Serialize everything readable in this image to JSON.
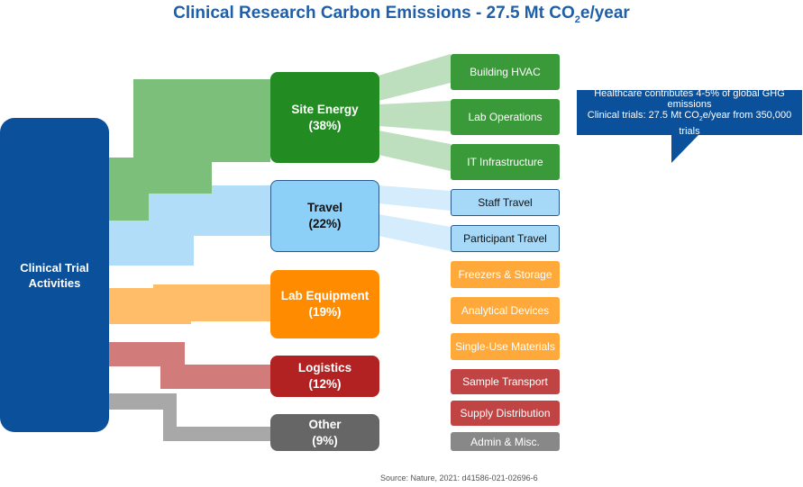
{
  "title": {
    "prefix": "Clinical Research Carbon Emissions - 27.5 Mt CO",
    "sub": "2",
    "suffix": "e/year"
  },
  "source_node": {
    "label_line1": "Clinical Trial",
    "label_line2": "Activities"
  },
  "categories": [
    {
      "id": "site-energy",
      "name": "Site Energy",
      "pct": "(38%)",
      "color": "#228b22",
      "text": "#ffffff"
    },
    {
      "id": "travel",
      "name": "Travel",
      "pct": "(22%)",
      "color": "#8ccff7",
      "text": "#111111"
    },
    {
      "id": "lab-equipment",
      "name": "Lab Equipment",
      "pct": "(19%)",
      "color": "#ff8c00",
      "text": "#ffffff"
    },
    {
      "id": "logistics",
      "name": "Logistics",
      "pct": "(12%)",
      "color": "#b22222",
      "text": "#ffffff"
    },
    {
      "id": "other",
      "name": "Other",
      "pct": "(9%)",
      "color": "#666666",
      "text": "#ffffff"
    }
  ],
  "subcategories": [
    {
      "label": "Building HVAC",
      "color": "#3a9a3a",
      "text": "#ffffff"
    },
    {
      "label": "Lab Operations",
      "color": "#3a9a3a",
      "text": "#ffffff"
    },
    {
      "label": "IT Infrastructure",
      "color": "#3a9a3a",
      "text": "#ffffff"
    },
    {
      "label": "Staff Travel",
      "color": "#a6d8f8",
      "text": "#111111"
    },
    {
      "label": "Participant Travel",
      "color": "#a6d8f8",
      "text": "#111111"
    },
    {
      "label": "Freezers & Storage",
      "color": "#ffa93a",
      "text": "#ffffff"
    },
    {
      "label": "Analytical Devices",
      "color": "#ffa93a",
      "text": "#ffffff"
    },
    {
      "label": "Single-Use Materials",
      "color": "#ffa93a",
      "text": "#ffffff"
    },
    {
      "label": "Sample Transport",
      "color": "#c04444",
      "text": "#ffffff"
    },
    {
      "label": "Supply Distribution",
      "color": "#c04444",
      "text": "#ffffff"
    },
    {
      "label": "Admin & Misc.",
      "color": "#888888",
      "text": "#ffffff"
    }
  ],
  "callout": {
    "line1": "Healthcare contributes 4-5% of global GHG emissions",
    "line2_prefix": "Clinical trials: 27.5 Mt CO",
    "line2_sub": "2",
    "line2_suffix": "e/year from 350,000 trials"
  },
  "source": "Source: Nature, 2021: d41586-021-02696-6"
}
